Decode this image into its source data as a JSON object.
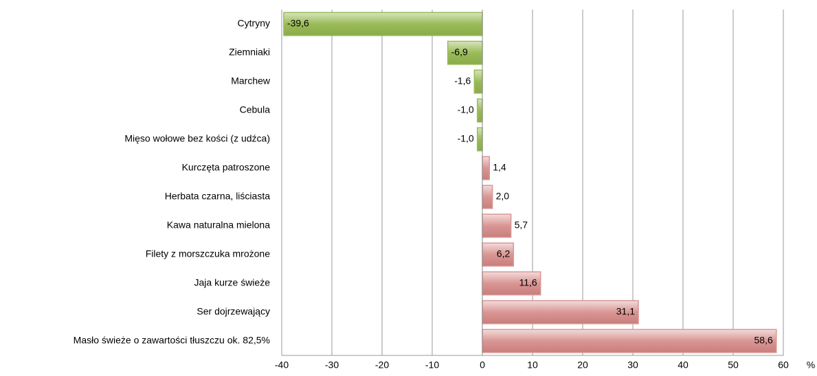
{
  "chart_data": {
    "type": "hbar",
    "categories": [
      "Cytryny",
      "Ziemniaki",
      "Marchew",
      "Cebula",
      "Mięso wołowe bez kości (z udźca)",
      "Kurczęta patroszone",
      "Herbata czarna, liściasta",
      "Kawa naturalna mielona",
      "Filety z morszczuka mrożone",
      "Jaja kurze świeże",
      "Ser dojrzewający",
      "Masło świeże o zawartości tłuszczu ok. 82,5%"
    ],
    "values": [
      -39.6,
      -6.9,
      -1.6,
      -1.0,
      -1.0,
      1.4,
      2.0,
      5.7,
      6.2,
      11.6,
      31.1,
      58.6
    ],
    "value_labels": [
      "-39,6",
      "-6,9",
      "-1,6",
      "-1,0",
      "-1,0",
      "1,4",
      "2,0",
      "5,7",
      "6,2",
      "11,6",
      "31,1",
      "58,6"
    ],
    "colors": [
      "#9bbb59",
      "#9bbb59",
      "#9bbb59",
      "#9bbb59",
      "#9bbb59",
      "#d99694",
      "#d99694",
      "#d99694",
      "#d99694",
      "#d99694",
      "#d99694",
      "#d99694"
    ],
    "xlabel": "%",
    "xlim": [
      -40,
      60
    ],
    "xticks": [
      -40,
      -30,
      -20,
      -10,
      0,
      10,
      20,
      30,
      40,
      50,
      60
    ],
    "grid": true
  }
}
